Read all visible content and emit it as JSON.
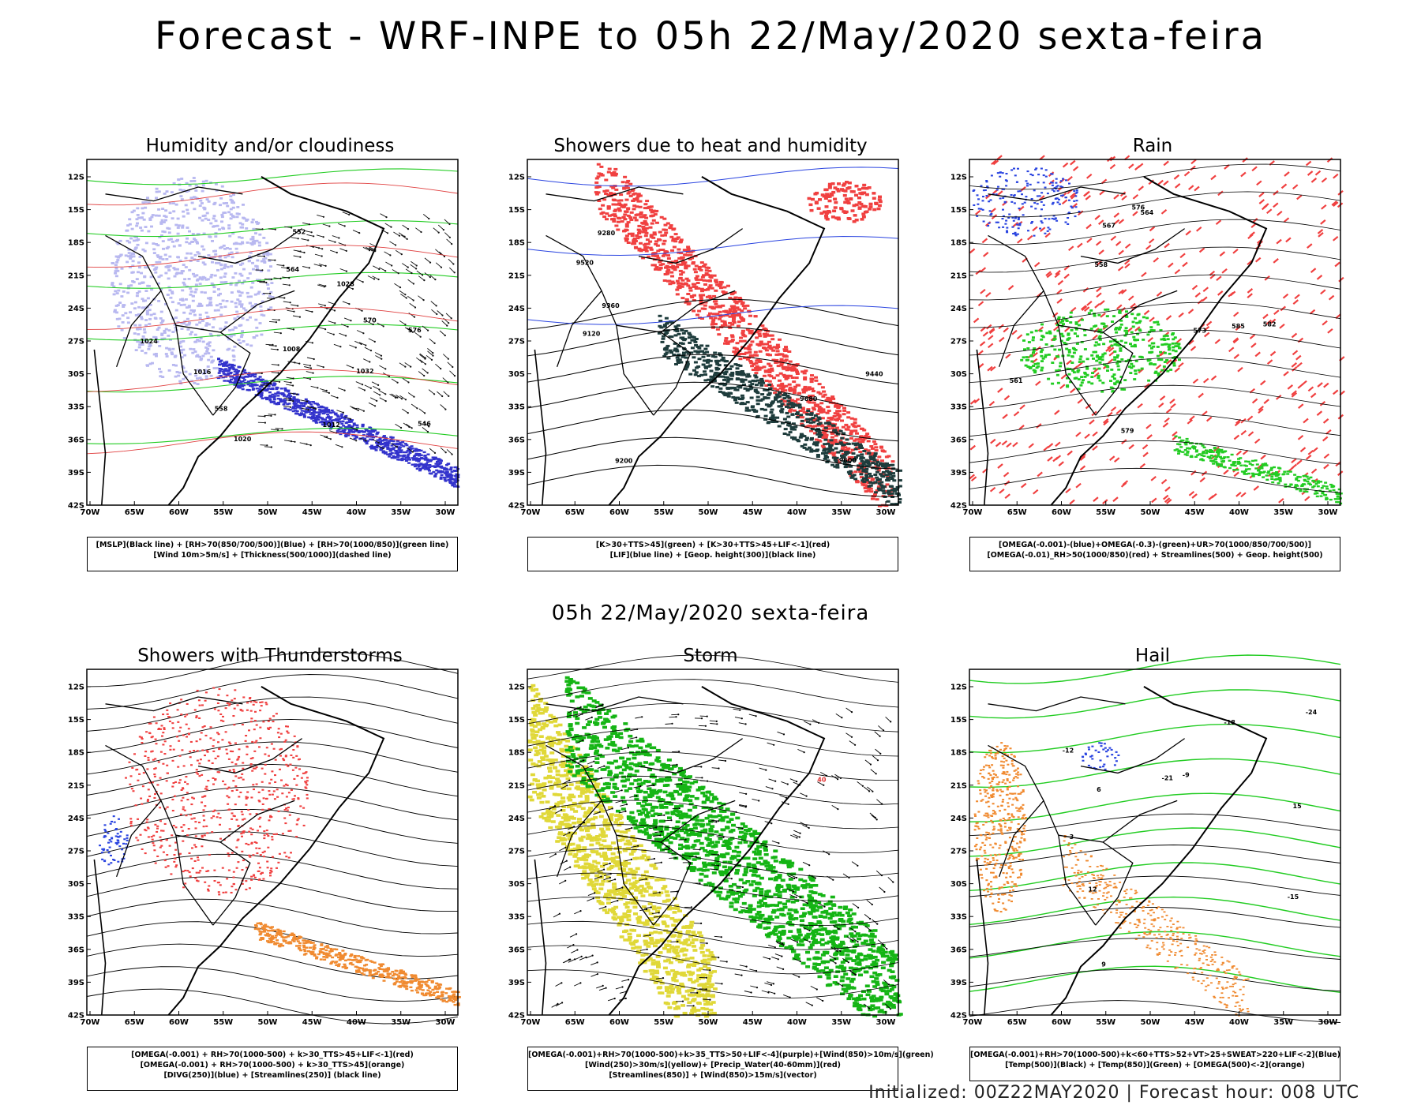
{
  "title": "Forecast - WRF-INPE to 05h 22/May/2020 sexta-feira",
  "mid_title": "05h 22/May/2020 sexta-feira",
  "footer": "Initialized: 00Z22MAY2020 | Forecast hour: 008 UTC",
  "axes": {
    "lat_labels": [
      "12S",
      "15S",
      "18S",
      "21S",
      "24S",
      "27S",
      "30S",
      "33S",
      "36S",
      "39S",
      "42S"
    ],
    "lon_labels": [
      "70W",
      "65W",
      "60W",
      "55W",
      "50W",
      "45W",
      "40W",
      "35W",
      "30W"
    ]
  },
  "colors": {
    "red": "#f04040",
    "blue": "#2a44e0",
    "green": "#22cc22",
    "lavender": "#b8b8f0",
    "navy": "#3333cc",
    "darkslate": "#1e3c3c",
    "yellow": "#e0d838",
    "darkgreen": "#15b515",
    "orange": "#f08a30",
    "black": "#000000"
  },
  "panels": [
    {
      "id": "humidity",
      "title": "Humidity and/or cloudiness",
      "legend": [
        "[MSLP](Black line) + [RH>70(850/700/500)](Blue) + [RH>70(1000/850)](green line)",
        "[Wind 10m>5m/s] + [Thickness(500/1000)](dashed line)"
      ],
      "contour_labels": [
        "1016",
        "1012",
        "1008",
        "1020",
        "1024",
        "1028",
        "1032",
        "546",
        "552",
        "558",
        "564",
        "570",
        "576"
      ]
    },
    {
      "id": "showers-heat",
      "title": "Showers due to heat and humidity",
      "legend": [
        "[K>30+TTS>45](green) + [K>30+TTS>45+LIF<-1](red)",
        "[LIF](blue line) + [Geop. height(300)](black line)"
      ],
      "contour_labels": [
        "9680",
        "9600",
        "9520",
        "9440",
        "9360",
        "9280",
        "9200",
        "9120"
      ]
    },
    {
      "id": "rain",
      "title": "Rain",
      "legend": [
        "[OMEGA(-0.001)-(blue)+OMEGA(-0.3)-(green)+UR>70(1000/850/700/500)]",
        "[OMEGA(-0.01)_RH>50(1000/850)(red) + Streamlines(500) + Geop. height(500)"
      ],
      "contour_labels": [
        "585",
        "579",
        "576",
        "573",
        "567",
        "564",
        "561",
        "558",
        "582"
      ]
    },
    {
      "id": "thunderstorms",
      "title": "Showers with Thunderstorms",
      "legend": [
        "[OMEGA(-0.001) + RH>70(1000-500) + k>30_TTS>45+LIF<-1](red)",
        "[OMEGA(-0.001) + RH>70(1000-500) + k>30_TTS>45](orange)",
        "[DIVG(250)](blue) + [Streamlines(250)] (black line)"
      ],
      "contour_labels": []
    },
    {
      "id": "storm",
      "title": "Storm",
      "legend": [
        "[OMEGA(-0.001)+RH>70(1000-500)+k>35_TTS>50+LIF<-4](purple)+[Wind(850)>10m/s](green)",
        "[Wind(250)>30m/s](yellow)+ [Precip_Water(40-60mm)](red)",
        "[Streamlines(850)] + [Wind(850)>15m/s](vector)"
      ],
      "contour_labels": [
        "40"
      ]
    },
    {
      "id": "hail",
      "title": "Hail",
      "legend": [
        "[OMEGA(-0.001)+RH>70(1000-500)+k<60+TTS>52+VT>25+SWEAT>220+LIF<-2](Blue)",
        "[Temp(500)](Black) + [Temp(850)](Green) + [OMEGA(500)<-2](orange)"
      ],
      "contour_labels": [
        "-9",
        "-12",
        "-15",
        "-18",
        "-21",
        "-24",
        "3",
        "6",
        "9",
        "12",
        "15"
      ]
    }
  ]
}
